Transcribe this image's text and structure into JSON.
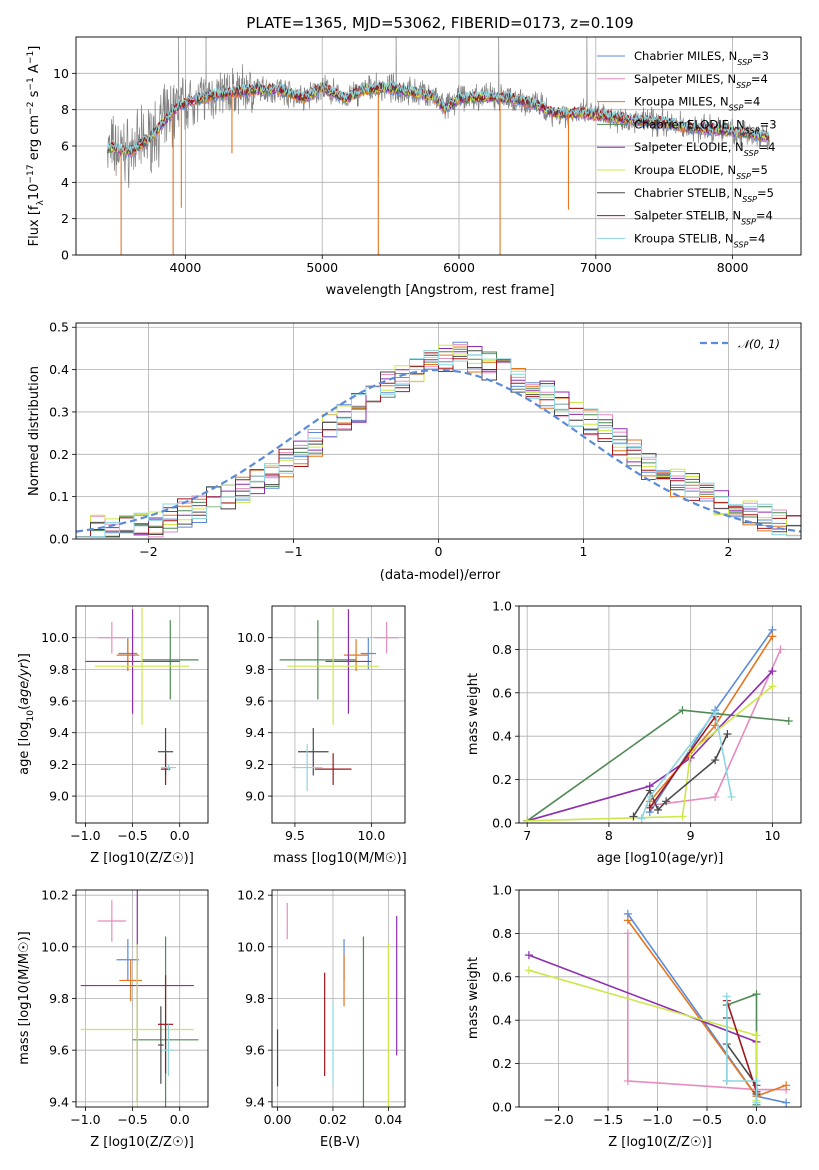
{
  "figure": {
    "title": "PLATE=1365, MJD=53062, FIBERID=0173, z=0.109"
  },
  "colors": {
    "Chabrier MILES": "#5b8bd9",
    "Salpeter MILES": "#e88bbf",
    "Kroupa MILES": "#e5761f",
    "Chabrier ELODIE": "#4f8a55",
    "Salpeter ELODIE": "#8e2db0",
    "Kroupa ELODIE": "#cce84a",
    "Chabrier STELIB": "#4a4a4a",
    "Salpeter STELIB": "#a0161c",
    "Kroupa STELIB": "#8ed6e0",
    "gaussian": "#5b8bd9"
  },
  "chart_data": [
    {
      "id": "spectrum",
      "type": "line",
      "title": "PLATE=1365, MJD=53062, FIBERID=0173, z=0.109",
      "xlabel": "wavelength [Angstrom, rest frame]",
      "ylabel": "Flux [f_λ10^-17 erg cm^-2 s^-1 A^-1]",
      "xlim": [
        3200,
        8500
      ],
      "ylim": [
        0,
        12
      ],
      "xticks": [
        4000,
        5000,
        6000,
        7000,
        8000
      ],
      "yticks": [
        0,
        2,
        4,
        6,
        8,
        10
      ],
      "legend_position": "upper right",
      "legend": [
        {
          "name": "Chabrier MILES",
          "nssp": "3"
        },
        {
          "name": "Salpeter MILES",
          "nssp": "4"
        },
        {
          "name": "Kroupa MILES",
          "nssp": "4"
        },
        {
          "name": "Chabrier ELODIE",
          "nssp": "3"
        },
        {
          "name": "Salpeter ELODIE",
          "nssp": "4"
        },
        {
          "name": "Kroupa ELODIE",
          "nssp": "5"
        },
        {
          "name": "Chabrier STELIB",
          "nssp": "5"
        },
        {
          "name": "Salpeter STELIB",
          "nssp": "4"
        },
        {
          "name": "Kroupa STELIB",
          "nssp": "4"
        }
      ],
      "continuum_x": [
        3430,
        3600,
        3750,
        3850,
        3950,
        4050,
        4150,
        4300,
        4500,
        4700,
        4862,
        5000,
        5175,
        5300,
        5500,
        5700,
        5800,
        5893,
        6000,
        6200,
        6400,
        6563,
        6700,
        6900,
        7100,
        7300,
        7500,
        7700,
        7900,
        8100,
        8270
      ],
      "continuum_y": [
        5.9,
        5.7,
        6.5,
        7.4,
        8.2,
        8.5,
        8.7,
        8.9,
        9.1,
        9.1,
        8.6,
        9.2,
        8.6,
        9.1,
        9.2,
        8.9,
        8.8,
        8.1,
        8.6,
        8.7,
        8.6,
        8.3,
        7.8,
        7.8,
        7.6,
        7.4,
        7.3,
        7.0,
        6.9,
        6.7,
        6.5
      ],
      "absorption_lines": [
        {
          "x": 3530,
          "y": 0
        },
        {
          "x": 3910,
          "y": 0
        },
        {
          "x": 3970,
          "y": 2.6
        },
        {
          "x": 4340,
          "y": 5.6
        },
        {
          "x": 5410,
          "y": 0
        },
        {
          "x": 6300,
          "y": 0
        },
        {
          "x": 6800,
          "y": 2.5
        }
      ],
      "observed_spikes": [
        3950,
        4150,
        5540,
        6290,
        6935
      ]
    },
    {
      "id": "residuals",
      "type": "step",
      "xlabel": "(data-model)/error",
      "ylabel": "Normed distribution",
      "xlim": [
        -2.5,
        2.5
      ],
      "ylim": [
        0,
        0.51
      ],
      "xticks": [
        -2,
        -1,
        0,
        1,
        2
      ],
      "yticks": [
        0.0,
        0.1,
        0.2,
        0.3,
        0.4,
        0.5
      ],
      "gaussian_label": "𝒩(0, 1)",
      "bin_width": 0.1,
      "base_counts": [
        0.02,
        0.03,
        0.02,
        0.04,
        0.03,
        0.03,
        0.05,
        0.06,
        0.07,
        0.09,
        0.1,
        0.12,
        0.13,
        0.15,
        0.18,
        0.2,
        0.23,
        0.26,
        0.29,
        0.31,
        0.33,
        0.36,
        0.38,
        0.4,
        0.42,
        0.43,
        0.44,
        0.42,
        0.41,
        0.4,
        0.38,
        0.36,
        0.34,
        0.32,
        0.3,
        0.28,
        0.26,
        0.23,
        0.2,
        0.17,
        0.15,
        0.13,
        0.12,
        0.1,
        0.08,
        0.07,
        0.06,
        0.05,
        0.04,
        0.03
      ]
    },
    {
      "id": "age_vs_Z",
      "type": "errorbar",
      "xlabel": "Z [log10(Z/Z☉)]",
      "ylabel": "age  [log10(age/yr)]",
      "xlim": [
        -1.1,
        0.3
      ],
      "ylim": [
        8.83,
        10.2
      ],
      "xticks": [
        -1.0,
        -0.5,
        0.0
      ],
      "yticks": [
        9.0,
        9.2,
        9.4,
        9.6,
        9.8,
        10.0
      ],
      "points": [
        {
          "model": "Chabrier MILES",
          "x": -0.55,
          "y": 9.9,
          "xerr": 0.1,
          "yerr": 0.1
        },
        {
          "model": "Salpeter MILES",
          "x": -0.72,
          "y": 10.0,
          "xerr": 0.15,
          "yerr": 0.1
        },
        {
          "model": "Kroupa MILES",
          "x": -0.55,
          "y": 9.89,
          "xerr": 0.12,
          "yerr": 0.1
        },
        {
          "model": "Chabrier ELODIE",
          "x": -0.1,
          "y": 9.86,
          "xerr": 0.3,
          "yerr": 0.25
        },
        {
          "model": "Salpeter ELODIE",
          "x": -0.5,
          "y": 9.85,
          "xerr": 0.5,
          "yerr": 0.33
        },
        {
          "model": "Kroupa ELODIE",
          "x": -0.4,
          "y": 9.82,
          "xerr": 0.5,
          "yerr": 0.37
        },
        {
          "model": "Chabrier STELIB",
          "x": -0.15,
          "y": 9.28,
          "xerr": 0.08,
          "yerr": 0.15
        },
        {
          "model": "Salpeter STELIB",
          "x": -0.15,
          "y": 9.17,
          "xerr": 0.05,
          "yerr": 0.1
        },
        {
          "model": "Kroupa STELIB",
          "x": -0.12,
          "y": 9.18,
          "xerr": 0.08,
          "yerr": 0.02
        }
      ]
    },
    {
      "id": "age_vs_mass",
      "type": "errorbar",
      "xlabel": "mass [log10(M/M☉)]",
      "xlim": [
        9.35,
        10.22
      ],
      "ylim": [
        8.83,
        10.2
      ],
      "xticks": [
        9.5,
        10.0
      ],
      "yticks": [
        9.0,
        9.2,
        9.4,
        9.6,
        9.8,
        10.0
      ],
      "points": [
        {
          "model": "Chabrier MILES",
          "x": 9.98,
          "y": 9.9,
          "xerr": 0.05,
          "yerr": 0.1
        },
        {
          "model": "Salpeter MILES",
          "x": 10.1,
          "y": 10.0,
          "xerr": 0.08,
          "yerr": 0.1
        },
        {
          "model": "Kroupa MILES",
          "x": 9.9,
          "y": 9.89,
          "xerr": 0.08,
          "yerr": 0.1
        },
        {
          "model": "Chabrier ELODIE",
          "x": 9.65,
          "y": 9.86,
          "xerr": 0.25,
          "yerr": 0.25
        },
        {
          "model": "Salpeter ELODIE",
          "x": 9.85,
          "y": 9.85,
          "xerr": 0.15,
          "yerr": 0.33
        },
        {
          "model": "Kroupa ELODIE",
          "x": 9.75,
          "y": 9.82,
          "xerr": 0.3,
          "yerr": 0.37
        },
        {
          "model": "Chabrier STELIB",
          "x": 9.62,
          "y": 9.28,
          "xerr": 0.1,
          "yerr": 0.15
        },
        {
          "model": "Salpeter STELIB",
          "x": 9.75,
          "y": 9.17,
          "xerr": 0.12,
          "yerr": 0.1
        },
        {
          "model": "Kroupa STELIB",
          "x": 9.58,
          "y": 9.18,
          "xerr": 0.1,
          "yerr": 0.15
        }
      ]
    },
    {
      "id": "weight_vs_age",
      "type": "line",
      "xlabel": "age  [log10(age/yr)]",
      "ylabel": "mass weight",
      "xlim": [
        6.9,
        10.35
      ],
      "ylim": [
        0,
        1.0
      ],
      "xticks": [
        7,
        8,
        9,
        10
      ],
      "yticks": [
        0.0,
        0.2,
        0.4,
        0.6,
        0.8,
        1.0
      ],
      "series": [
        {
          "model": "Chabrier MILES",
          "x": [
            8.5,
            9.3,
            10.0
          ],
          "y": [
            0.05,
            0.52,
            0.89
          ]
        },
        {
          "model": "Salpeter MILES",
          "x": [
            8.5,
            9.3,
            10.1
          ],
          "y": [
            0.08,
            0.12,
            0.8
          ]
        },
        {
          "model": "Kroupa MILES",
          "x": [
            8.5,
            9.3,
            10.0
          ],
          "y": [
            0.1,
            0.45,
            0.86
          ]
        },
        {
          "model": "Chabrier ELODIE",
          "x": [
            7.0,
            8.9,
            10.2
          ],
          "y": [
            0.01,
            0.52,
            0.47
          ]
        },
        {
          "model": "Salpeter ELODIE",
          "x": [
            7.0,
            8.5,
            9.0,
            10.0
          ],
          "y": [
            0.01,
            0.17,
            0.3,
            0.7
          ]
        },
        {
          "model": "Kroupa ELODIE",
          "x": [
            7.0,
            8.9,
            9.0,
            10.0
          ],
          "y": [
            0.01,
            0.03,
            0.33,
            0.63
          ]
        },
        {
          "model": "Chabrier STELIB",
          "x": [
            8.3,
            8.5,
            8.6,
            8.7,
            9.3,
            9.45
          ],
          "y": [
            0.03,
            0.15,
            0.06,
            0.1,
            0.29,
            0.41
          ]
        },
        {
          "model": "Salpeter STELIB",
          "x": [
            8.5,
            9.3
          ],
          "y": [
            0.07,
            0.49
          ]
        },
        {
          "model": "Kroupa STELIB",
          "x": [
            8.4,
            8.5,
            9.3,
            9.5
          ],
          "y": [
            0.02,
            0.12,
            0.51,
            0.12
          ]
        }
      ]
    },
    {
      "id": "mass_vs_Z",
      "type": "errorbar",
      "xlabel": "Z [log10(Z/Z☉)]",
      "ylabel": "mass [log10(M/M☉)]",
      "xlim": [
        -1.1,
        0.3
      ],
      "ylim": [
        9.38,
        10.22
      ],
      "xticks": [
        -1.0,
        -0.5,
        0.0
      ],
      "yticks": [
        9.4,
        9.6,
        9.8,
        10.0,
        10.2
      ],
      "points": [
        {
          "model": "Chabrier MILES",
          "x": -0.55,
          "y": 9.95,
          "xerr": 0.12,
          "yerr": 0.08
        },
        {
          "model": "Salpeter MILES",
          "x": -0.72,
          "y": 10.1,
          "xerr": 0.15,
          "yerr": 0.08
        },
        {
          "model": "Kroupa MILES",
          "x": -0.52,
          "y": 9.87,
          "xerr": 0.12,
          "yerr": 0.08
        },
        {
          "model": "Chabrier ELODIE",
          "x": -0.15,
          "y": 9.64,
          "xerr": 0.35,
          "yerr": 0.4
        },
        {
          "model": "Salpeter ELODIE",
          "x": -0.45,
          "y": 9.85,
          "xerr": 0.6,
          "yerr": 0.45
        },
        {
          "model": "Kroupa ELODIE",
          "x": -0.45,
          "y": 9.68,
          "xerr": 0.6,
          "yerr": 0.33
        },
        {
          "model": "Chabrier STELIB",
          "x": -0.2,
          "y": 9.62,
          "xerr": 0.03,
          "yerr": 0.15
        },
        {
          "model": "Salpeter STELIB",
          "x": -0.15,
          "y": 9.7,
          "xerr": 0.08,
          "yerr": 0.19
        },
        {
          "model": "Kroupa STELIB",
          "x": -0.12,
          "y": 9.6,
          "xerr": 0.06,
          "yerr": 0.1
        }
      ]
    },
    {
      "id": "mass_vs_ebv",
      "type": "errorbar",
      "xlabel": "E(B-V)",
      "xlim": [
        -0.002,
        0.046
      ],
      "ylim": [
        9.38,
        10.22
      ],
      "xticks": [
        0.0,
        0.02,
        0.04
      ],
      "yticks": [
        9.4,
        9.6,
        9.8,
        10.0,
        10.2
      ],
      "points": [
        {
          "model": "Chabrier MILES",
          "x": 0.024,
          "y": 9.95,
          "xerr": 0,
          "yerr": 0.08
        },
        {
          "model": "Salpeter MILES",
          "x": 0.0035,
          "y": 10.1,
          "xerr": 0,
          "yerr": 0.07
        },
        {
          "model": "Kroupa MILES",
          "x": 0.024,
          "y": 9.87,
          "xerr": 0,
          "yerr": 0.1
        },
        {
          "model": "Chabrier ELODIE",
          "x": 0.031,
          "y": 9.64,
          "xerr": 0,
          "yerr": 0.4
        },
        {
          "model": "Salpeter ELODIE",
          "x": 0.043,
          "y": 9.85,
          "xerr": 0,
          "yerr": 0.27
        },
        {
          "model": "Kroupa ELODIE",
          "x": 0.04,
          "y": 9.68,
          "xerr": 0,
          "yerr": 0.33
        },
        {
          "model": "Chabrier STELIB",
          "x": 0.0,
          "y": 9.57,
          "xerr": 0,
          "yerr": 0.11
        },
        {
          "model": "Salpeter STELIB",
          "x": 0.017,
          "y": 9.7,
          "xerr": 0,
          "yerr": 0.2
        },
        {
          "model": "Kroupa STELIB",
          "x": 0.02,
          "y": 9.63,
          "xerr": 0,
          "yerr": 0.16
        }
      ]
    },
    {
      "id": "weight_vs_Z",
      "type": "line",
      "xlabel": "Z [log10(Z/Z☉)]",
      "ylabel": "mass weight",
      "xlim": [
        -2.4,
        0.45
      ],
      "ylim": [
        0,
        1.0
      ],
      "xticks": [
        -2.0,
        -1.5,
        -1.0,
        -0.5,
        0.0
      ],
      "yticks": [
        0.0,
        0.2,
        0.4,
        0.6,
        0.8,
        1.0
      ],
      "series": [
        {
          "model": "Chabrier MILES",
          "x": [
            -1.3,
            0.0,
            0.3
          ],
          "y": [
            0.89,
            0.05,
            0.02
          ]
        },
        {
          "model": "Salpeter MILES",
          "x": [
            -1.3,
            -1.3,
            0.0,
            0.3
          ],
          "y": [
            0.8,
            0.12,
            0.08,
            0.08
          ]
        },
        {
          "model": "Kroupa MILES",
          "x": [
            -1.3,
            0.0,
            0.3
          ],
          "y": [
            0.86,
            0.05,
            0.1
          ]
        },
        {
          "model": "Chabrier ELODIE",
          "x": [
            -0.3,
            -0.3,
            0.0,
            0.0
          ],
          "y": [
            0.12,
            0.47,
            0.52,
            0.01
          ]
        },
        {
          "model": "Salpeter ELODIE",
          "x": [
            -2.3,
            0.0
          ],
          "y": [
            0.7,
            0.3
          ]
        },
        {
          "model": "Kroupa ELODIE",
          "x": [
            -2.3,
            0.0,
            0.0
          ],
          "y": [
            0.63,
            0.33,
            0.03
          ]
        },
        {
          "model": "Chabrier STELIB",
          "x": [
            -0.3,
            -0.3,
            0.0,
            0.0
          ],
          "y": [
            0.41,
            0.29,
            0.1,
            0.06
          ]
        },
        {
          "model": "Salpeter STELIB",
          "x": [
            -0.3,
            0.0
          ],
          "y": [
            0.49,
            0.07
          ]
        },
        {
          "model": "Kroupa STELIB",
          "x": [
            -0.3,
            -0.3,
            0.0,
            0.0
          ],
          "y": [
            0.51,
            0.12,
            0.12,
            0.02
          ]
        }
      ]
    }
  ]
}
